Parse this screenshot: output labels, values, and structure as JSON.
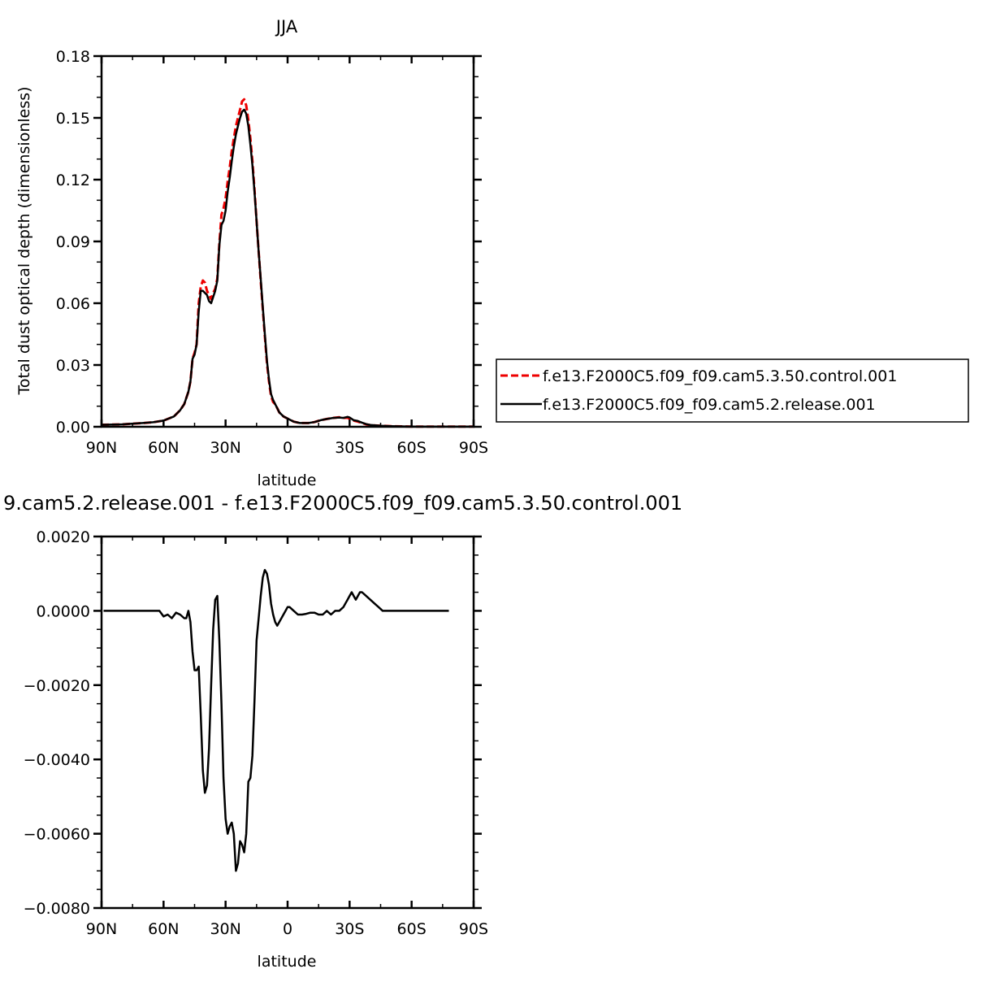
{
  "chart_data": [
    {
      "type": "line",
      "title": "JJA",
      "xlabel": "latitude",
      "ylabel": "Total dust optical depth (dimensionless)",
      "xlim": [
        90,
        -90
      ],
      "ylim": [
        0,
        0.18
      ],
      "x_ticks": [
        90,
        60,
        30,
        0,
        -30,
        -60,
        -90
      ],
      "x_tick_labels": [
        "90N",
        "60N",
        "30N",
        "0",
        "30S",
        "60S",
        "90S"
      ],
      "y_ticks": [
        0,
        0.03,
        0.06,
        0.09,
        0.12,
        0.15,
        0.18
      ],
      "y_tick_labels": [
        "0.00",
        "0.03",
        "0.06",
        "0.09",
        "0.12",
        "0.15",
        "0.18"
      ],
      "legend_position": "right",
      "series": [
        {
          "name": "f.e13.F2000C5.f09_f09.cam5.3.50.control.001",
          "color": "#ee0000",
          "dash": "dashed",
          "x": [
            90,
            80,
            70,
            65,
            60,
            55,
            52,
            50,
            48,
            47,
            46,
            45,
            44,
            43,
            42,
            41,
            40,
            39,
            38,
            37,
            36,
            35,
            34,
            33,
            32,
            31,
            30,
            29,
            28,
            27,
            26,
            25,
            24,
            23,
            22,
            21,
            20,
            19,
            18,
            17,
            16,
            15,
            14,
            13,
            12,
            11,
            10,
            9,
            8,
            7,
            6,
            5,
            4,
            3,
            2,
            0,
            -3,
            -6,
            -10,
            -13,
            -16,
            -19,
            -22,
            -25,
            -27,
            -29,
            -30,
            -32,
            -34,
            -36,
            -38,
            -40,
            -45,
            -50,
            -55,
            -60,
            -70,
            -80,
            -90
          ],
          "values": [
            0.001,
            0.0012,
            0.0018,
            0.0022,
            0.003,
            0.005,
            0.008,
            0.011,
            0.017,
            0.022,
            0.033,
            0.036,
            0.04,
            0.06,
            0.068,
            0.071,
            0.07,
            0.066,
            0.064,
            0.062,
            0.065,
            0.067,
            0.072,
            0.089,
            0.103,
            0.106,
            0.111,
            0.119,
            0.126,
            0.134,
            0.14,
            0.146,
            0.15,
            0.154,
            0.158,
            0.159,
            0.156,
            0.149,
            0.14,
            0.129,
            0.115,
            0.1,
            0.085,
            0.071,
            0.057,
            0.044,
            0.031,
            0.022,
            0.015,
            0.012,
            0.011,
            0.009,
            0.007,
            0.006,
            0.005,
            0.004,
            0.0025,
            0.0018,
            0.0018,
            0.0023,
            0.0032,
            0.0038,
            0.0043,
            0.0046,
            0.0043,
            0.0044,
            0.0038,
            0.003,
            0.0025,
            0.0018,
            0.0012,
            0.0008,
            0.0005,
            0.0003,
            0.0002,
            0.0001,
            0.0001,
            0.0001,
            0.0001
          ]
        },
        {
          "name": "f.e13.F2000C5.f09_f09.cam5.2.release.001",
          "color": "#000000",
          "dash": "solid",
          "x": [
            90,
            80,
            70,
            65,
            60,
            55,
            52,
            50,
            48,
            47,
            46,
            45,
            44,
            43,
            42,
            41,
            40,
            39,
            38,
            37,
            36,
            35,
            34,
            33,
            32,
            31,
            30,
            29,
            28,
            27,
            26,
            25,
            24,
            23,
            22,
            21,
            20,
            19,
            18,
            17,
            16,
            15,
            14,
            13,
            12,
            11,
            10,
            9,
            8,
            7,
            6,
            5,
            4,
            3,
            2,
            0,
            -3,
            -6,
            -10,
            -13,
            -16,
            -19,
            -22,
            -25,
            -27,
            -29,
            -30,
            -32,
            -34,
            -36,
            -38,
            -40,
            -45,
            -50,
            -55,
            -60,
            -70,
            -80,
            -90
          ],
          "values": [
            0.001,
            0.0012,
            0.0018,
            0.0022,
            0.003,
            0.005,
            0.008,
            0.011,
            0.017,
            0.022,
            0.033,
            0.035,
            0.04,
            0.056,
            0.066,
            0.066,
            0.065,
            0.064,
            0.061,
            0.06,
            0.063,
            0.066,
            0.071,
            0.088,
            0.098,
            0.1,
            0.105,
            0.114,
            0.121,
            0.129,
            0.136,
            0.142,
            0.146,
            0.15,
            0.153,
            0.154,
            0.152,
            0.146,
            0.137,
            0.127,
            0.114,
            0.1,
            0.085,
            0.072,
            0.058,
            0.045,
            0.032,
            0.023,
            0.016,
            0.013,
            0.011,
            0.009,
            0.007,
            0.006,
            0.005,
            0.004,
            0.0025,
            0.0018,
            0.0018,
            0.0023,
            0.0032,
            0.0038,
            0.0043,
            0.0045,
            0.0043,
            0.0048,
            0.0045,
            0.0032,
            0.0028,
            0.002,
            0.0013,
            0.0009,
            0.0005,
            0.0003,
            0.0002,
            0.0001,
            0.0001,
            0.0001,
            0.0001
          ]
        }
      ]
    },
    {
      "type": "line",
      "title": "9.cam5.2.release.001 - f.e13.F2000C5.f09_f09.cam5.3.50.control.001",
      "xlabel": "latitude",
      "ylabel": "",
      "xlim": [
        90,
        -90
      ],
      "ylim": [
        -0.008,
        0.002
      ],
      "x_ticks": [
        90,
        60,
        30,
        0,
        -30,
        -60,
        -90
      ],
      "x_tick_labels": [
        "90N",
        "60N",
        "30N",
        "0",
        "30S",
        "60S",
        "90S"
      ],
      "y_ticks": [
        -0.008,
        -0.006,
        -0.004,
        -0.002,
        0,
        0.002
      ],
      "y_tick_labels": [
        "-0.0080",
        "-0.0060",
        "-0.0040",
        "-0.0020",
        "0.0000",
        "0.0020"
      ],
      "series": [
        {
          "color": "#000000",
          "dash": "solid",
          "x": [
            89,
            86,
            80,
            75,
            70,
            65,
            62,
            60,
            58,
            56,
            54,
            52,
            50,
            49,
            48,
            47,
            46,
            45,
            44,
            43,
            42,
            41,
            40,
            39,
            38,
            37,
            36,
            35,
            34,
            33,
            32,
            31,
            30,
            29,
            28,
            27,
            26,
            25,
            24,
            23,
            22,
            21,
            20,
            19,
            18,
            17,
            16,
            15,
            14,
            13,
            12,
            11,
            10,
            9,
            8,
            7,
            6,
            5,
            4,
            3,
            2,
            1,
            0,
            -1,
            -3,
            -5,
            -7,
            -9,
            -11,
            -13,
            -15,
            -17,
            -19,
            -21,
            -23,
            -25,
            -27,
            -28,
            -29,
            -30,
            -31,
            -32,
            -33,
            -34,
            -35,
            -36,
            -38,
            -40,
            -42,
            -44,
            -46,
            -48,
            -50,
            -55,
            -60,
            -70,
            -78
          ],
          "values": [
            0.0,
            0.0,
            0.0,
            0.0,
            0.0,
            0.0,
            0.0,
            -0.00015,
            -0.0001,
            -0.0002,
            -5e-05,
            -0.0001,
            -0.0002,
            -0.0002,
            0.0,
            -0.0003,
            -0.0011,
            -0.0016,
            -0.0016,
            -0.0015,
            -0.0028,
            -0.0043,
            -0.0049,
            -0.0047,
            -0.0037,
            -0.002,
            -0.0005,
            0.0003,
            0.0004,
            -0.0008,
            -0.0025,
            -0.0045,
            -0.0056,
            -0.006,
            -0.0058,
            -0.0057,
            -0.006,
            -0.007,
            -0.0068,
            -0.0062,
            -0.0063,
            -0.0065,
            -0.006,
            -0.0046,
            -0.0045,
            -0.0039,
            -0.0024,
            -0.0008,
            -0.0002,
            0.0004,
            0.0009,
            0.0011,
            0.001,
            0.0007,
            0.0002,
            -0.0001,
            -0.0003,
            -0.0004,
            -0.0003,
            -0.0002,
            -0.0001,
            0.0,
            0.0001,
            0.0001,
            0.0,
            -0.0001,
            -0.0001,
            -8e-05,
            -5e-05,
            -5e-05,
            -0.0001,
            -0.0001,
            0.0,
            -0.0001,
            0.0,
            0.0,
            0.0001,
            0.0002,
            0.0003,
            0.0004,
            0.0005,
            0.0004,
            0.0003,
            0.0004,
            0.0005,
            0.0005,
            0.0004,
            0.0003,
            0.0002,
            0.0001,
            0.0,
            0.0,
            0.0,
            0.0,
            0.0,
            0.0,
            0.0
          ]
        }
      ]
    }
  ]
}
